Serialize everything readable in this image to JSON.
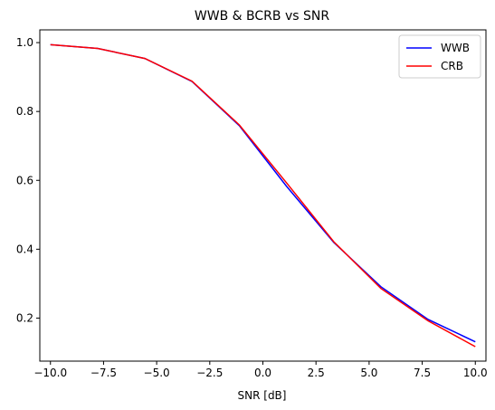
{
  "chart_data": {
    "type": "line",
    "title": "WWB & BCRB vs SNR",
    "xlabel": "SNR [dB]",
    "ylabel": "",
    "xlim": [
      -10.5,
      10.5
    ],
    "ylim": [
      0.075,
      1.037
    ],
    "xticks": [
      -10.0,
      -7.5,
      -5.0,
      -2.5,
      0.0,
      2.5,
      5.0,
      7.5,
      10.0
    ],
    "xtick_labels": [
      "−10.0",
      "−7.5",
      "−5.0",
      "−2.5",
      "0.0",
      "2.5",
      "5.0",
      "7.5",
      "10.0"
    ],
    "yticks": [
      0.2,
      0.4,
      0.6,
      0.8,
      1.0
    ],
    "ytick_labels": [
      "0.2",
      "0.4",
      "0.6",
      "0.8",
      "1.0"
    ],
    "grid": false,
    "legend_position": "top-right",
    "x": [
      -10.0,
      -7.778,
      -5.556,
      -3.333,
      -1.111,
      1.111,
      3.333,
      5.556,
      7.778,
      10.0
    ],
    "series": [
      {
        "name": "WWB",
        "color": "#0000ff",
        "values": [
          0.994,
          0.983,
          0.954,
          0.887,
          0.759,
          0.583,
          0.42,
          0.291,
          0.196,
          0.131
        ]
      },
      {
        "name": "CRB",
        "color": "#ff0000",
        "values": [
          0.994,
          0.983,
          0.954,
          0.888,
          0.761,
          0.593,
          0.422,
          0.286,
          0.192,
          0.117
        ]
      }
    ]
  }
}
